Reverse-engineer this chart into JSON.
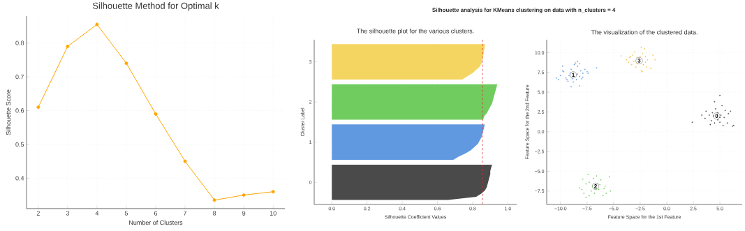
{
  "chart_data": [
    {
      "type": "line",
      "title": "Silhouette Method for Optimal k",
      "xlabel": "Number of Clusters",
      "ylabel": "Silhouette Score",
      "x": [
        2,
        3,
        4,
        5,
        6,
        7,
        8,
        9,
        10
      ],
      "values": [
        0.61,
        0.79,
        0.855,
        0.74,
        0.59,
        0.45,
        0.335,
        0.35,
        0.36
      ],
      "color": "#ffa500",
      "marker": "circle",
      "xlim": [
        1.6,
        10.4
      ],
      "ylim": [
        0.31,
        0.88
      ],
      "xticks": [
        2,
        3,
        4,
        5,
        6,
        7,
        8,
        9,
        10
      ],
      "yticks": [
        0.4,
        0.5,
        0.6,
        0.7,
        0.8
      ],
      "grid": true
    },
    {
      "type": "area",
      "orientation": "horizontal",
      "title": "Silhouette analysis for KMeans clustering on data with n_clusters = 4",
      "subtitle": "The silhouette plot for the various clusters.",
      "xlabel": "Silhouette Coefficient Values",
      "ylabel": "Cluster Label",
      "ylim": [
        -0.55,
        3.55
      ],
      "yticks": [
        0,
        1,
        2,
        3
      ],
      "series": [
        {
          "color": "#f5d562",
          "x": [
            3.44,
            3.36,
            3.28,
            3.2,
            3.12,
            3.04,
            2.96,
            2.88,
            2.8,
            2.72,
            2.64,
            2.56
          ],
          "values": [
            0.87,
            0.868,
            0.865,
            0.862,
            0.858,
            0.855,
            0.85,
            0.84,
            0.82,
            0.8,
            0.77,
            0.74
          ]
        },
        {
          "color": "#70cc5e",
          "x": [
            2.44,
            2.36,
            2.28,
            2.2,
            2.12,
            2.04,
            1.96,
            1.88,
            1.8,
            1.72,
            1.64,
            1.56
          ],
          "values": [
            0.94,
            0.935,
            0.93,
            0.925,
            0.92,
            0.915,
            0.91,
            0.9,
            0.89,
            0.88,
            0.865,
            0.86
          ]
        },
        {
          "color": "#6199e0",
          "x": [
            1.44,
            1.36,
            1.28,
            1.2,
            1.12,
            1.04,
            0.96,
            0.88,
            0.8,
            0.72,
            0.64,
            0.56
          ],
          "values": [
            0.868,
            0.865,
            0.86,
            0.855,
            0.85,
            0.84,
            0.83,
            0.81,
            0.79,
            0.76,
            0.72,
            0.69
          ]
        },
        {
          "color": "#4a4a4a",
          "x": [
            0.44,
            0.36,
            0.28,
            0.2,
            0.12,
            0.04,
            -0.04,
            -0.12,
            -0.2,
            -0.28,
            -0.36,
            -0.44
          ],
          "values": [
            0.91,
            0.905,
            0.9,
            0.9,
            0.895,
            0.89,
            0.885,
            0.88,
            0.87,
            0.85,
            0.82,
            0.66
          ]
        }
      ],
      "xlim": [
        -0.1,
        1.05
      ],
      "xticks": [
        {
          "value": 0,
          "label": "0.0"
        },
        0.2,
        0.4,
        0.6,
        0.8,
        {
          "value": 1,
          "label": "1.0"
        }
      ],
      "grid": "x",
      "ref_lines": [
        {
          "axis": "x",
          "value": 0.855,
          "color": "#e03030",
          "line_style": "dashed"
        }
      ]
    },
    {
      "type": "scatter",
      "title": "The visualization of the clustered data.",
      "xlabel": "Feature Space for the 1st Feature",
      "ylabel": "Feature Space for the 2nd Feature",
      "marker": "circle",
      "series": [
        {
          "color": "#4a4a4a",
          "x": [
            2.4,
            3.3,
            3.6,
            3.7,
            4.0,
            4.1,
            4.2,
            4.3,
            4.5,
            4.5,
            4.6,
            4.8,
            4.8,
            5.0,
            5.0,
            5.1,
            5.2,
            5.3,
            5.4,
            5.5,
            5.7,
            5.8,
            6.0,
            6.2,
            6.3,
            4.4,
            5.0
          ],
          "values": [
            1.2,
            2.1,
            1.7,
            2.6,
            2.1,
            0.9,
            1.4,
            2.4,
            3.8,
            1.1,
            2.9,
            1.5,
            2.4,
            1.2,
            4.6,
            2.1,
            3.3,
            0.8,
            1.8,
            2.7,
            1.1,
            2.3,
            2.6,
            0.7,
            0.8,
            2.0,
            1.8
          ]
        },
        {
          "color": "#6199e0",
          "x": [
            -10.4,
            -10.2,
            -9.8,
            -9.8,
            -10.0,
            -9.7,
            -9.5,
            -9.3,
            -9.0,
            -9.1,
            -8.9,
            -8.7,
            -8.6,
            -8.4,
            -8.4,
            -8.2,
            -8.1,
            -8.2,
            -8.2,
            -7.9,
            -7.7,
            -7.5,
            -7.4,
            -6.6,
            -8.5,
            -8.8,
            -9.2,
            -8.4,
            -8.0,
            -9.0,
            -9.4,
            -7.9
          ],
          "values": [
            6.8,
            6.6,
            8.3,
            7.7,
            7.1,
            7.6,
            6.8,
            6.4,
            5.7,
            7.4,
            6.7,
            8.5,
            8.7,
            8.9,
            8.3,
            8.6,
            7.7,
            7.0,
            5.8,
            7.4,
            7.9,
            7.6,
            7.4,
            8.1,
            6.6,
            6.3,
            7.1,
            7.3,
            6.7,
            7.9,
            6.6,
            6.9
          ]
        },
        {
          "color": "#70cc5e",
          "x": [
            -8.2,
            -8.0,
            -7.9,
            -7.6,
            -7.4,
            -7.3,
            -7.1,
            -7.6,
            -6.9,
            -6.6,
            -6.5,
            -6.4,
            -6.2,
            -6.0,
            -5.8,
            -5.7,
            -5.4,
            -5.3,
            -6.8,
            -7.0,
            -7.8,
            -6.3,
            -5.9,
            -7.3,
            -6.6
          ],
          "values": [
            -7.1,
            -7.3,
            -6.0,
            -6.6,
            -5.4,
            -6.4,
            -7.5,
            -8.3,
            -5.9,
            -5.6,
            -6.6,
            -7.3,
            -6.1,
            -8.1,
            -6.9,
            -7.8,
            -5.7,
            -7.5,
            -7.8,
            -6.9,
            -7.8,
            -6.7,
            -7.2,
            -8.1,
            -7.2
          ]
        },
        {
          "color": "#f5c242",
          "x": [
            -4.3,
            -3.8,
            -3.5,
            -3.3,
            -3.2,
            -3.0,
            -2.9,
            -2.8,
            -2.4,
            -2.3,
            -2.2,
            -2.1,
            -2.0,
            -1.9,
            -1.8,
            -1.5,
            -1.1,
            -2.4,
            -2.3,
            -3.1,
            -3.4,
            -2.0,
            -2.5,
            -2.8,
            -3.6,
            -1.3
          ],
          "values": [
            9.6,
            9.1,
            9.4,
            8.5,
            9.7,
            10.1,
            8.2,
            9.4,
            10.7,
            9.9,
            8.5,
            10.5,
            9.5,
            8.2,
            9.1,
            8.0,
            9.1,
            7.7,
            7.6,
            8.9,
            9.5,
            8.8,
            9.5,
            8.6,
            8.8,
            9.7
          ]
        }
      ],
      "annotations": [
        {
          "text": "0",
          "x": 4.7,
          "y": 2.0
        },
        {
          "text": "1",
          "x": -8.8,
          "y": 7.2
        },
        {
          "text": "2",
          "x": -6.7,
          "y": -6.9
        },
        {
          "text": "3",
          "x": -2.6,
          "y": 9.0
        }
      ],
      "xlim": [
        -11.3,
        7.1
      ],
      "ylim": [
        -9.2,
        11.65
      ],
      "xticks": [
        {
          "value": -10,
          "label": "−10.0"
        },
        {
          "value": -7.5,
          "label": "−7.5"
        },
        {
          "value": -5,
          "label": "−5.0"
        },
        {
          "value": -2.5,
          "label": "−2.5"
        },
        {
          "value": 0,
          "label": "0.0"
        },
        2.5,
        {
          "value": 5,
          "label": "5.0"
        }
      ],
      "yticks": [
        {
          "value": -7.5,
          "label": "−7.5"
        },
        {
          "value": -5,
          "label": "−5.0"
        },
        {
          "value": -2.5,
          "label": "−2.5"
        },
        {
          "value": 0,
          "label": "0.0"
        },
        2.5,
        {
          "value": 5,
          "label": "5.0"
        },
        7.5,
        {
          "value": 10,
          "label": "10.0"
        }
      ],
      "grid": true
    }
  ]
}
